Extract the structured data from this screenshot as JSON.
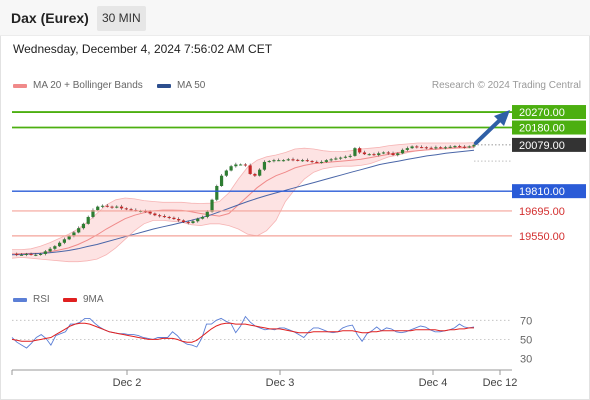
{
  "header": {
    "title": "Dax (Eurex)",
    "interval": "30 MIN"
  },
  "datetime": "Wednesday, December 4, 2024 7:56:02 AM CET",
  "legend": {
    "ma20": "MA 20 + Bollinger Bands",
    "ma50": "MA 50",
    "credit": "Research © 2024 Trading Central"
  },
  "rsi_legend": {
    "rsi": "RSI",
    "ma9": "9MA"
  },
  "colors": {
    "candle_up": "#2e7d32",
    "candle_down": "#c62828",
    "bollinger_fill": "#fcdada",
    "ma20": "#f08a8a",
    "ma50": "#4a66a8",
    "resistance_line": "#4caf10",
    "current_tag": "#333333",
    "support_line": "#2a5bd7",
    "target_line": "#f4a39a",
    "target_text": "#d32f2f",
    "arrow": "#2f5fa6",
    "rsi": "#5b7fd6",
    "rsi_ma9": "#e02020"
  },
  "chart_data": [
    {
      "type": "candlestick",
      "title": "Dax (Eurex)",
      "interval": "30 MIN",
      "x_ticks": [
        "Dec 2",
        "Dec 3",
        "Dec 4",
        "Dec 12"
      ],
      "ylim": [
        19340,
        20340
      ],
      "levels": [
        {
          "value": 20270.0,
          "label": "20270.00",
          "kind": "resistance"
        },
        {
          "value": 20180.0,
          "label": "20180.00",
          "kind": "resistance"
        },
        {
          "value": 20079.0,
          "label": "20079.00",
          "kind": "current"
        },
        {
          "value": 19810.0,
          "label": "19810.00",
          "kind": "pivot"
        },
        {
          "value": 19695.0,
          "label": "19695.00",
          "kind": "support"
        },
        {
          "value": 19550.0,
          "label": "19550.00",
          "kind": "support"
        }
      ],
      "close_path": [
        19445,
        19440,
        19440,
        19445,
        19440,
        19440,
        19445,
        19460,
        19475,
        19490,
        19510,
        19530,
        19550,
        19570,
        19595,
        19620,
        19660,
        19700,
        19720,
        19725,
        19720,
        19715,
        19720,
        19710,
        19705,
        19700,
        19695,
        19695,
        19690,
        19680,
        19670,
        19665,
        19660,
        19655,
        19648,
        19640,
        19630,
        19625,
        19635,
        19650,
        19660,
        19690,
        19760,
        19840,
        19900,
        19930,
        19955,
        19965,
        19965,
        19960,
        19910,
        19900,
        19935,
        19980,
        19985,
        19990,
        19990,
        19990,
        19995,
        19992,
        19988,
        19990,
        19985,
        19980,
        19978,
        19980,
        19990,
        19995,
        20000,
        20005,
        20010,
        20015,
        20060,
        20035,
        20025,
        20025,
        20020,
        20030,
        20035,
        20030,
        20020,
        20030,
        20050,
        20060,
        20070,
        20066,
        20065,
        20062,
        20060,
        20065,
        20062,
        20065,
        20068,
        20072,
        20068,
        20065,
        20070,
        20079
      ],
      "bollinger_upper": [
        19470,
        19470,
        19475,
        19490,
        19510,
        19535,
        19560,
        19590,
        19630,
        19680,
        19730,
        19760,
        19770,
        19765,
        19755,
        19750,
        19745,
        19745,
        19745,
        19740,
        19738,
        19740,
        19750,
        19800,
        19880,
        19950,
        19990,
        20010,
        20020,
        20035,
        20055,
        20060,
        20055,
        20045,
        20040,
        20040,
        20045,
        20055,
        20060,
        20065,
        20075,
        20080,
        20085,
        20090,
        20090,
        20090,
        20090,
        20090,
        20090,
        20092
      ],
      "bollinger_lower": [
        19420,
        19425,
        19420,
        19415,
        19410,
        19405,
        19400,
        19400,
        19405,
        19415,
        19440,
        19480,
        19530,
        19580,
        19620,
        19640,
        19640,
        19635,
        19630,
        19615,
        19610,
        19620,
        19620,
        19610,
        19590,
        19560,
        19550,
        19580,
        19640,
        19750,
        19820,
        19880,
        19920,
        19940,
        19950,
        19955,
        19955,
        19960,
        19970,
        19990,
        20010,
        20020,
        20035,
        20045,
        20050,
        20052,
        20055,
        20058,
        20060,
        20062
      ],
      "ma20": [
        19445,
        19447,
        19448,
        19450,
        19458,
        19468,
        19480,
        19500,
        19525,
        19555,
        19590,
        19620,
        19650,
        19670,
        19685,
        19695,
        19700,
        19700,
        19698,
        19690,
        19680,
        19672,
        19665,
        19680,
        19730,
        19780,
        19830,
        19870,
        19900,
        19920,
        19945,
        19960,
        19970,
        19975,
        19980,
        19985,
        19990,
        19995,
        20005,
        20015,
        20025,
        20035,
        20040,
        20045,
        20050,
        20055,
        20060,
        20062,
        20065,
        20068
      ],
      "ma50": [
        19440,
        19442,
        19445,
        19448,
        19452,
        19458,
        19465,
        19475,
        19488,
        19500,
        19515,
        19530,
        19545,
        19560,
        19575,
        19590,
        19603,
        19615,
        19628,
        19640,
        19655,
        19670,
        19690,
        19710,
        19730,
        19750,
        19768,
        19785,
        19800,
        19815,
        19830,
        19845,
        19860,
        19875,
        19890,
        19905,
        19920,
        19935,
        19950,
        19965,
        19975,
        19985,
        19995,
        20005,
        20015,
        20022,
        20030,
        20036,
        20042,
        20048
      ]
    },
    {
      "type": "line",
      "title": "RSI",
      "ylim": [
        20,
        85
      ],
      "y_ticks": [
        70,
        50,
        30
      ],
      "series": [
        {
          "name": "RSI",
          "values": [
            52,
            47,
            44,
            41,
            46,
            52,
            55,
            51,
            44,
            54,
            56,
            58,
            66,
            66,
            68,
            72,
            72,
            67,
            63,
            60,
            58,
            57,
            56,
            56,
            55,
            55,
            54,
            52,
            51,
            50,
            52,
            52,
            52,
            58,
            54,
            48,
            45,
            44,
            42,
            51,
            66,
            66,
            70,
            72,
            69,
            67,
            57,
            64,
            74,
            68,
            64,
            62,
            60,
            61,
            60,
            62,
            62,
            60,
            58,
            55,
            52,
            58,
            62,
            62,
            60,
            58,
            57,
            58,
            62,
            64,
            65,
            55,
            48,
            56,
            59,
            63,
            59,
            62,
            61,
            58,
            57,
            58,
            60,
            62,
            64,
            63,
            60,
            58,
            58,
            59,
            60,
            62,
            66,
            63,
            62,
            63
          ]
        },
        {
          "name": "9MA",
          "values": [
            50,
            49,
            48,
            48,
            48,
            49,
            50,
            51,
            52,
            55,
            58,
            61,
            64,
            66,
            67,
            67,
            66,
            64,
            62,
            60,
            58,
            57,
            56,
            55,
            54,
            53,
            52,
            51,
            50,
            50,
            50,
            51,
            51,
            51,
            50,
            48,
            47,
            47,
            49,
            53,
            57,
            61,
            64,
            66,
            67,
            67,
            66,
            66,
            66,
            65,
            64,
            63,
            62,
            61,
            61,
            61,
            60,
            59,
            58,
            57,
            57,
            57,
            58,
            58,
            58,
            58,
            58,
            58,
            59,
            59,
            59,
            58,
            57,
            57,
            58,
            58,
            59,
            59,
            59,
            59,
            59,
            59,
            59,
            60,
            60,
            60,
            60,
            60,
            59,
            59,
            60,
            60,
            61,
            61,
            62,
            62
          ]
        }
      ]
    }
  ]
}
